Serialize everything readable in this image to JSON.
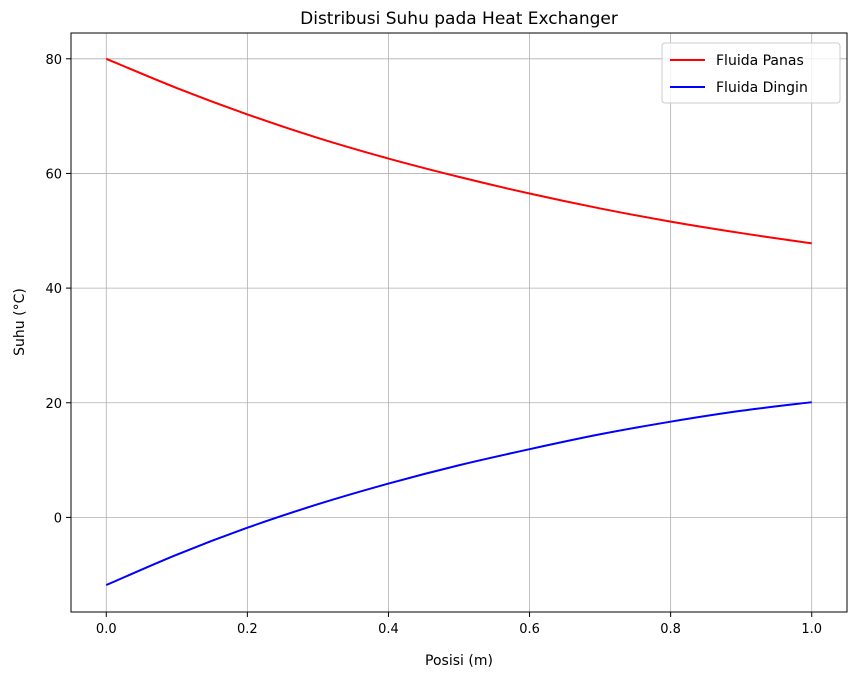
{
  "chart_data": {
    "type": "line",
    "title": "Distribusi Suhu pada Heat Exchanger",
    "xlabel": "Posisi (m)",
    "ylabel": "Suhu (°C)",
    "xlim": [
      -0.05,
      1.05
    ],
    "ylim": [
      -16.5,
      84.5
    ],
    "x_ticks": [
      0.0,
      0.2,
      0.4,
      0.6,
      0.8,
      1.0
    ],
    "x_tick_labels": [
      "0.0",
      "0.2",
      "0.4",
      "0.6",
      "0.8",
      "1.0"
    ],
    "y_ticks": [
      0,
      20,
      40,
      60,
      80
    ],
    "y_tick_labels": [
      "0",
      "20",
      "40",
      "60",
      "80"
    ],
    "grid": true,
    "legend_position": "top-right",
    "x": [
      0.0,
      0.1,
      0.2,
      0.3,
      0.4,
      0.5,
      0.6,
      0.7,
      0.8,
      0.9,
      1.0
    ],
    "series": [
      {
        "name": "Fluida Panas",
        "color": "#ff0000",
        "values": [
          80.0,
          74.9,
          70.3,
          66.2,
          62.6,
          59.4,
          56.5,
          53.9,
          51.6,
          49.6,
          47.8
        ]
      },
      {
        "name": "Fluida Dingin",
        "color": "#0000ff",
        "values": [
          -11.8,
          -6.5,
          -1.8,
          2.3,
          5.9,
          9.1,
          11.9,
          14.5,
          16.7,
          18.6,
          20.1
        ]
      }
    ]
  }
}
